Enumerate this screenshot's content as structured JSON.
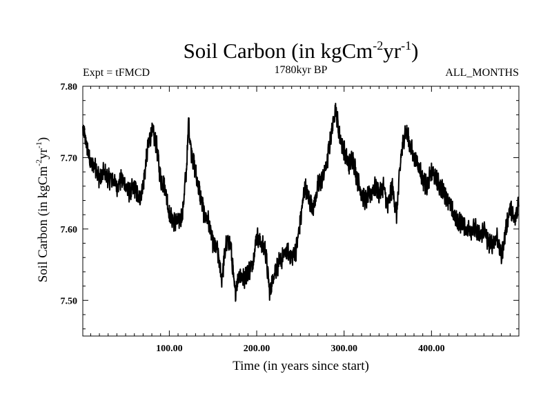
{
  "chart_data": {
    "type": "line",
    "title_main": "Soil Carbon (in kgCm",
    "title_sup1": "-2",
    "title_mid": "yr",
    "title_sup2": "-1",
    "title_end": ")",
    "subtitle_left": "Expt = tFMCD",
    "subtitle_center": "1780kyr BP",
    "subtitle_right": "ALL_MONTHS",
    "xlabel": "Time (in years since start)",
    "ylabel_main": "Soil Carbon (in kgCm",
    "ylabel_sup1": "-2",
    "ylabel_mid": "yr",
    "ylabel_sup2": "-1",
    "ylabel_end": ")",
    "xlim": [
      1,
      500
    ],
    "ylim": [
      7.45,
      7.8
    ],
    "xticks": [
      100,
      200,
      300,
      400
    ],
    "xtick_labels": [
      "100.00",
      "200.00",
      "300.00",
      "400.00"
    ],
    "yticks": [
      7.5,
      7.6,
      7.7,
      7.8
    ],
    "ytick_labels": [
      "7.50",
      "7.60",
      "7.70",
      "7.80"
    ],
    "series": [
      {
        "name": "Soil Carbon",
        "color": "#000000",
        "x": [
          1,
          5,
          10,
          15,
          20,
          25,
          30,
          35,
          40,
          45,
          50,
          55,
          60,
          65,
          70,
          75,
          80,
          85,
          90,
          95,
          100,
          105,
          110,
          115,
          120,
          122,
          125,
          130,
          135,
          140,
          145,
          150,
          155,
          160,
          165,
          170,
          175,
          180,
          185,
          190,
          195,
          200,
          205,
          210,
          215,
          220,
          225,
          230,
          235,
          240,
          245,
          250,
          255,
          260,
          265,
          270,
          275,
          280,
          285,
          290,
          295,
          300,
          305,
          310,
          315,
          320,
          325,
          330,
          335,
          340,
          345,
          350,
          355,
          360,
          365,
          370,
          375,
          380,
          385,
          390,
          395,
          400,
          405,
          410,
          415,
          420,
          425,
          430,
          435,
          440,
          445,
          450,
          455,
          460,
          465,
          470,
          475,
          480,
          485,
          490,
          495,
          500
        ],
        "y": [
          7.74,
          7.72,
          7.69,
          7.69,
          7.67,
          7.68,
          7.67,
          7.67,
          7.66,
          7.67,
          7.66,
          7.65,
          7.66,
          7.64,
          7.66,
          7.71,
          7.74,
          7.72,
          7.67,
          7.66,
          7.62,
          7.61,
          7.61,
          7.62,
          7.69,
          7.75,
          7.71,
          7.68,
          7.65,
          7.62,
          7.61,
          7.58,
          7.57,
          7.53,
          7.58,
          7.58,
          7.51,
          7.54,
          7.53,
          7.54,
          7.55,
          7.59,
          7.58,
          7.57,
          7.51,
          7.54,
          7.55,
          7.56,
          7.57,
          7.56,
          7.57,
          7.61,
          7.66,
          7.64,
          7.63,
          7.66,
          7.67,
          7.69,
          7.73,
          7.77,
          7.73,
          7.71,
          7.69,
          7.7,
          7.67,
          7.65,
          7.64,
          7.65,
          7.66,
          7.65,
          7.66,
          7.63,
          7.66,
          7.62,
          7.7,
          7.74,
          7.72,
          7.7,
          7.69,
          7.67,
          7.66,
          7.68,
          7.67,
          7.66,
          7.65,
          7.64,
          7.62,
          7.61,
          7.61,
          7.6,
          7.6,
          7.6,
          7.59,
          7.6,
          7.58,
          7.58,
          7.59,
          7.56,
          7.6,
          7.63,
          7.61,
          7.64
        ]
      }
    ]
  }
}
